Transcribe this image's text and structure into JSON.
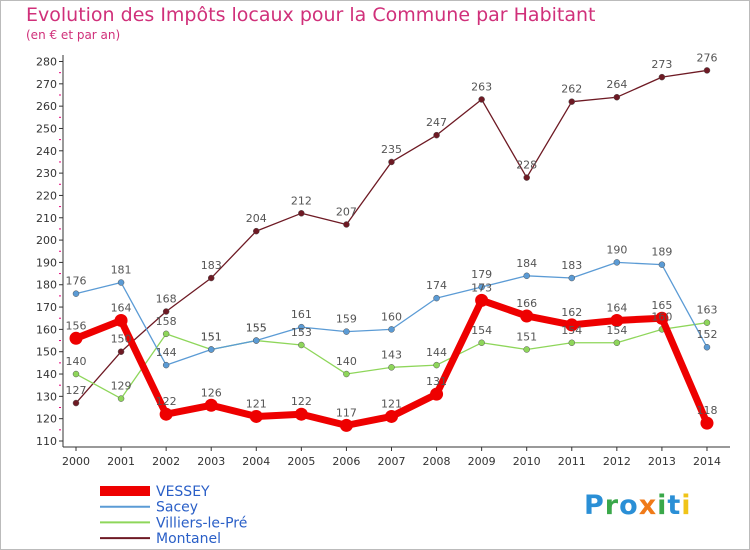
{
  "chart_data": {
    "type": "line",
    "title": "Evolution des Impôts locaux pour la Commune par Habitant",
    "subtitle": "(en € et par an)",
    "x": [
      "2000",
      "2001",
      "2002",
      "2003",
      "2004",
      "2005",
      "2006",
      "2007",
      "2008",
      "2009",
      "2010",
      "2011",
      "2012",
      "2013",
      "2014"
    ],
    "ylim": [
      110,
      280
    ],
    "yticks": [
      110,
      120,
      130,
      140,
      150,
      160,
      170,
      180,
      190,
      200,
      210,
      220,
      230,
      240,
      250,
      260,
      270,
      280
    ],
    "grid": false,
    "legend_position": "bottom-left",
    "series": [
      {
        "name": "VESSEY",
        "color": "#ee0000",
        "values": [
          156,
          164,
          122,
          126,
          121,
          122,
          117,
          121,
          131,
          173,
          166,
          162,
          164,
          165,
          118
        ],
        "labels": [
          "156",
          "164",
          "122",
          "126",
          "121",
          "122",
          "117",
          "121",
          "131",
          "173",
          "166",
          "162",
          "164",
          "165",
          "118"
        ]
      },
      {
        "name": "Sacey",
        "color": "#5b9bd5",
        "values": [
          176,
          181,
          144,
          151,
          155,
          161,
          159,
          160,
          174,
          179,
          184,
          183,
          190,
          189,
          152
        ],
        "labels": [
          "176",
          "181",
          "144",
          "151",
          "155",
          "161",
          "159",
          "160",
          "174",
          "179",
          "184",
          "183",
          "190",
          "189",
          "152"
        ]
      },
      {
        "name": "Villiers-le-Pré",
        "color": "#8ed65a",
        "values": [
          140,
          129,
          158,
          151,
          155,
          153,
          140,
          143,
          144,
          154,
          151,
          154,
          154,
          160,
          163
        ],
        "labels": [
          "140",
          "129",
          "158",
          "151",
          "155",
          "153",
          "140",
          "143",
          "144",
          "154",
          "151",
          "154",
          "154",
          "160",
          "163"
        ]
      },
      {
        "name": "Montanel",
        "color": "#6e1a24",
        "values": [
          127,
          150,
          168,
          183,
          204,
          212,
          207,
          235,
          247,
          263,
          228,
          262,
          264,
          273,
          276
        ],
        "labels": [
          "127",
          "150",
          "168",
          "183",
          "204",
          "212",
          "207",
          "235",
          "247",
          "263",
          "228",
          "262",
          "264",
          "273",
          "276"
        ]
      }
    ]
  },
  "brand": {
    "logo_letters": [
      "P",
      "r",
      "o",
      "x",
      "i",
      "t",
      "i"
    ],
    "logo_colors": [
      "#2a8fd6",
      "#3aa84a",
      "#2a8fd6",
      "#f07a18",
      "#3aa84a",
      "#2a8fd6",
      "#f0c418"
    ]
  }
}
